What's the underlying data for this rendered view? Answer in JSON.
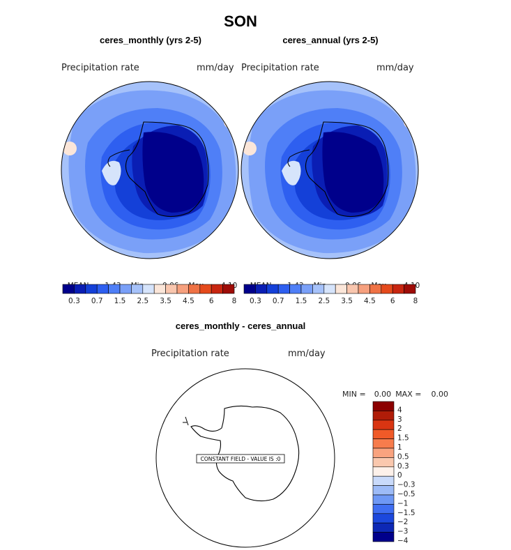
{
  "title": "SON",
  "panels": [
    {
      "subtitle": "ceres_monthly (yrs 2-5)",
      "variable": "Precipitation rate",
      "units": "mm/day",
      "stats": {
        "mean_label": "MEAN=",
        "mean": "1.43",
        "min_label": "Min=",
        "min": "0.06",
        "max_label": "Max=",
        "max": "4.10"
      }
    },
    {
      "subtitle": "ceres_annual (yrs 2-5)",
      "variable": "Precipitation rate",
      "units": "mm/day",
      "stats": {
        "mean_label": "MEAN=",
        "mean": "1.43",
        "min_label": "Min=",
        "min": "0.06",
        "max_label": "Max=",
        "max": "4.10"
      }
    }
  ],
  "colorbar": {
    "tick_labels": [
      "0.3",
      "0.7",
      "1.5",
      "2.5",
      "3.5",
      "4.5",
      "6",
      "8"
    ],
    "colors": [
      "#00008B",
      "#0A1EB4",
      "#1440D8",
      "#2E5FF0",
      "#4F7FF7",
      "#7AA0F8",
      "#A6C2FA",
      "#D6E4FB",
      "#FBE6D9",
      "#F9C6AE",
      "#F6A07E",
      "#EF7245",
      "#E54A1C",
      "#C82610",
      "#9E0C07"
    ]
  },
  "difference": {
    "subtitle": "ceres_monthly - ceres_annual",
    "variable": "Precipitation rate",
    "units": "mm/day",
    "min_label": "MIN =",
    "min": "0.00",
    "max_label": "MAX =",
    "max": "0.00",
    "constant_field_text": "CONSTANT FIELD - VALUE IS :0",
    "colorbar_labels": [
      "4",
      "3",
      "2",
      "1.5",
      "1",
      "0.5",
      "0.3",
      "0",
      "−0.3",
      "−0.5",
      "−1",
      "−1.5",
      "−2",
      "−3",
      "−4"
    ],
    "colorbar_colors": [
      "#8B0000",
      "#B01C08",
      "#D93512",
      "#F05A28",
      "#F77C4C",
      "#F9A37F",
      "#FAC8AE",
      "#FDF1EA",
      "#C9DAFA",
      "#9DBBF7",
      "#6E98F5",
      "#3F6EF2",
      "#1C48DD",
      "#0D28B5",
      "#00008B"
    ]
  }
}
